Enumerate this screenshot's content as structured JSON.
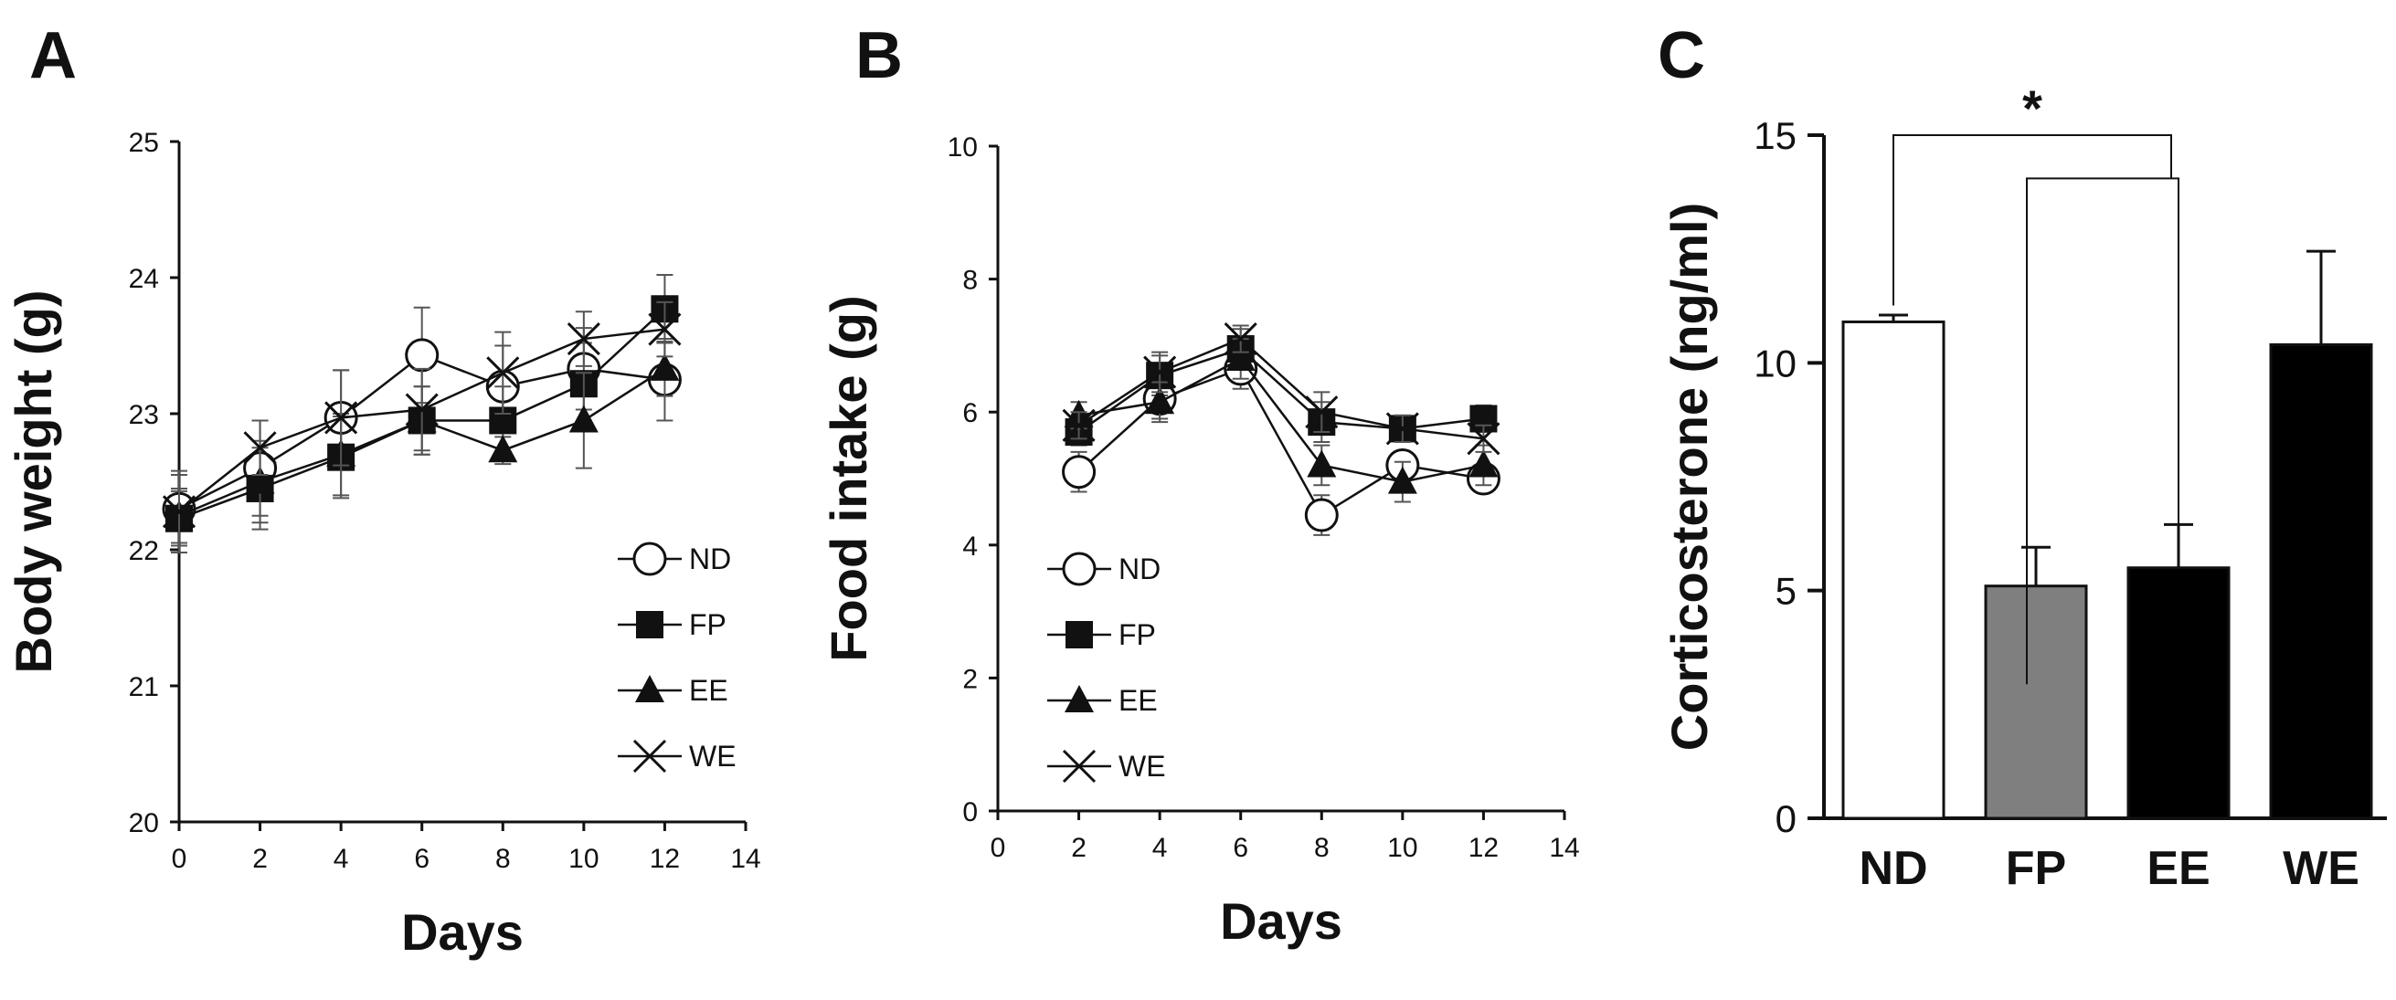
{
  "chart_data": [
    {
      "type": "line",
      "panel": "A",
      "title": "",
      "xlabel": "Days",
      "ylabel": "Body weight (g)",
      "xlim": [
        0,
        14
      ],
      "ylim": [
        20,
        25
      ],
      "xticks": [
        0,
        2,
        4,
        6,
        8,
        10,
        12,
        14
      ],
      "yticks": [
        20,
        21,
        22,
        23,
        24,
        25
      ],
      "legend_position": "bottom-right",
      "series": [
        {
          "name": "ND",
          "marker": "open-circle",
          "x": [
            0,
            2,
            4,
            6,
            8,
            10,
            12
          ],
          "y": [
            22.3,
            22.6,
            22.97,
            23.43,
            23.2,
            23.33,
            23.25
          ],
          "err": [
            0.25,
            0.35,
            0.35,
            0.35,
            0.3,
            0.3,
            0.3
          ]
        },
        {
          "name": "FP",
          "marker": "filled-square",
          "x": [
            0,
            2,
            4,
            6,
            8,
            10,
            12
          ],
          "y": [
            22.23,
            22.45,
            22.68,
            22.95,
            22.95,
            23.22,
            23.77
          ],
          "err": [
            0.2,
            0.3,
            0.3,
            0.25,
            0.25,
            0.3,
            0.25
          ]
        },
        {
          "name": "EE",
          "marker": "filled-triangle",
          "x": [
            0,
            2,
            4,
            6,
            8,
            10,
            12
          ],
          "y": [
            22.25,
            22.5,
            22.7,
            22.95,
            22.73,
            22.95,
            23.33
          ],
          "err": [
            0.2,
            0.3,
            0.3,
            0.25,
            0.1,
            0.35,
            0.2
          ]
        },
        {
          "name": "WE",
          "marker": "x-cross",
          "x": [
            0,
            2,
            4,
            6,
            8,
            10,
            12
          ],
          "y": [
            22.28,
            22.75,
            22.97,
            23.03,
            23.3,
            23.55,
            23.62
          ],
          "err": [
            0.3,
            0.2,
            0.35,
            0.3,
            0.3,
            0.2,
            0.2
          ]
        }
      ]
    },
    {
      "type": "line",
      "panel": "B",
      "title": "",
      "xlabel": "Days",
      "ylabel": "Food intake (g)",
      "xlim": [
        0,
        14
      ],
      "ylim": [
        0,
        10
      ],
      "xticks": [
        0,
        2,
        4,
        6,
        8,
        10,
        12,
        14
      ],
      "yticks": [
        0,
        2,
        4,
        6,
        8,
        10
      ],
      "legend_position": "bottom-left",
      "series": [
        {
          "name": "ND",
          "marker": "open-circle",
          "x": [
            2,
            4,
            6,
            8,
            10,
            12
          ],
          "y": [
            5.1,
            6.2,
            6.65,
            4.45,
            5.2,
            5.0
          ],
          "err": [
            0.3,
            0.3,
            0.3,
            0.3,
            0.2,
            0.2
          ]
        },
        {
          "name": "FP",
          "marker": "filled-square",
          "x": [
            2,
            4,
            6,
            8,
            10,
            12
          ],
          "y": [
            5.7,
            6.55,
            6.95,
            5.85,
            5.75,
            5.9
          ],
          "err": [
            0.2,
            0.3,
            0.3,
            0.3,
            0.2,
            0.2
          ]
        },
        {
          "name": "EE",
          "marker": "filled-triangle",
          "x": [
            2,
            4,
            6,
            8,
            10,
            12
          ],
          "y": [
            5.95,
            6.15,
            6.8,
            5.2,
            4.95,
            5.2
          ],
          "err": [
            0.2,
            0.3,
            0.3,
            0.3,
            0.3,
            0.3
          ]
        },
        {
          "name": "WE",
          "marker": "x-cross",
          "x": [
            2,
            4,
            6,
            8,
            10,
            12
          ],
          "y": [
            5.8,
            6.6,
            7.1,
            6.0,
            5.75,
            5.6
          ],
          "err": [
            0.2,
            0.3,
            0.2,
            0.3,
            0.2,
            0.2
          ]
        }
      ]
    },
    {
      "type": "bar",
      "panel": "C",
      "title": "",
      "xlabel": "",
      "ylabel": "Corticosterone (ng/ml)",
      "ylim": [
        0,
        15
      ],
      "yticks": [
        0,
        5,
        10,
        15
      ],
      "categories": [
        "ND",
        "FP",
        "EE",
        "WE"
      ],
      "values": [
        10.9,
        5.1,
        5.5,
        10.4
      ],
      "errors": [
        0.15,
        0.85,
        0.95,
        2.05
      ],
      "colors": [
        "#ffffff",
        "#7f7f7f",
        "#000000",
        "#000000"
      ],
      "annotation": "*"
    }
  ],
  "panels": {
    "a": "A",
    "b": "B",
    "c": "C"
  }
}
